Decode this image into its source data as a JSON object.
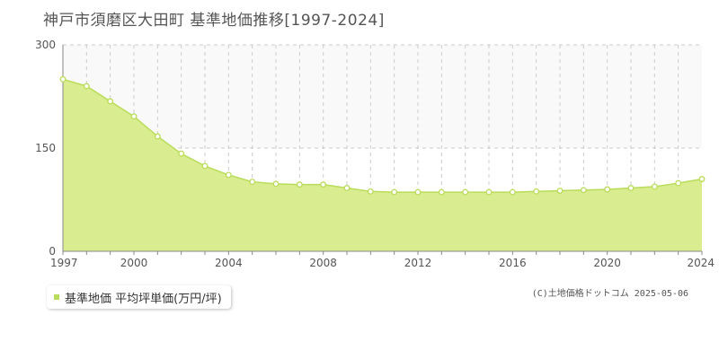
{
  "title": "神戸市須磨区大田町 基準地価推移[1997-2024]",
  "legend_label": "基準地価 平均坪単価(万円/坪)",
  "credit": "(C)土地価格ドットコム 2025-05-06",
  "colors": {
    "fill": "#d9ec8f",
    "line": "#b9dc5a",
    "marker": "#b9dc5a",
    "upper_band": "#f9f9f9",
    "grid": "#cccccc",
    "axis": "#888888"
  },
  "chart_data": {
    "type": "area",
    "title": "神戸市須磨区大田町 基準地価推移[1997-2024]",
    "xlabel": "",
    "ylabel": "",
    "x": [
      1997,
      1998,
      1999,
      2000,
      2001,
      2002,
      2003,
      2004,
      2005,
      2006,
      2007,
      2008,
      2009,
      2010,
      2011,
      2012,
      2013,
      2014,
      2015,
      2016,
      2017,
      2018,
      2019,
      2020,
      2021,
      2022,
      2023,
      2024
    ],
    "series": [
      {
        "name": "基準地価 平均坪単価(万円/坪)",
        "values": [
          250,
          240,
          218,
          196,
          167,
          142,
          124,
          111,
          101,
          98,
          97,
          97,
          92,
          87,
          86,
          86,
          86,
          86,
          86,
          86,
          87,
          88,
          89,
          90,
          92,
          94,
          99,
          105
        ]
      }
    ],
    "xlim": [
      1997,
      2024
    ],
    "ylim": [
      0,
      300
    ],
    "y_ticks": [
      0,
      150,
      300
    ],
    "x_ticks": [
      1997,
      2000,
      2004,
      2008,
      2012,
      2016,
      2020,
      2024
    ],
    "grid": true,
    "legend_position": "bottom-left"
  }
}
